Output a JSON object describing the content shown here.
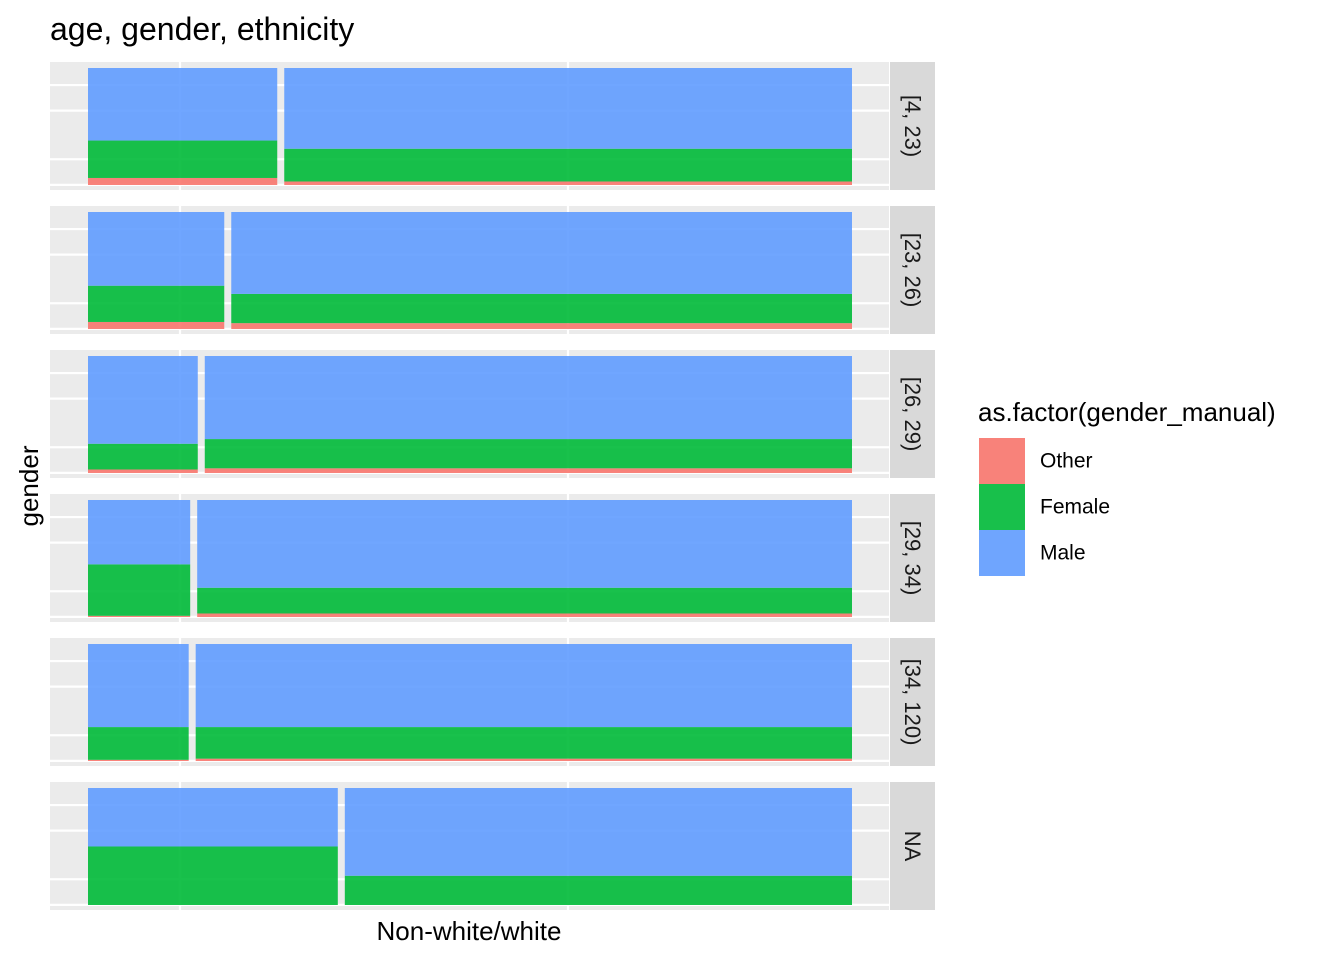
{
  "chart_data": {
    "type": "mosaic",
    "title": "age, gender, ethnicity",
    "xlabel": "Non-white/white",
    "ylabel": "gender",
    "legend": {
      "title": "as.factor(gender_manual)",
      "position": "right",
      "entries": [
        {
          "name": "Other",
          "color": "#F8766D"
        },
        {
          "name": "Female",
          "color": "#00BA38"
        },
        {
          "name": "Male",
          "color": "#619CFF"
        }
      ]
    },
    "stack_order": [
      "Other",
      "Female",
      "Male"
    ],
    "grid": true,
    "panels": [
      {
        "label": "[4, 23)",
        "columns": [
          {
            "width_share": 0.25,
            "Other": 0.06,
            "Female": 0.32,
            "Male": 0.62
          },
          {
            "width_share": 0.75,
            "Other": 0.03,
            "Female": 0.28,
            "Male": 0.69
          }
        ]
      },
      {
        "label": "[23, 26)",
        "columns": [
          {
            "width_share": 0.18,
            "Other": 0.06,
            "Female": 0.31,
            "Male": 0.63
          },
          {
            "width_share": 0.82,
            "Other": 0.05,
            "Female": 0.25,
            "Male": 0.7
          }
        ]
      },
      {
        "label": "[26, 29)",
        "columns": [
          {
            "width_share": 0.145,
            "Other": 0.03,
            "Female": 0.22,
            "Male": 0.75
          },
          {
            "width_share": 0.855,
            "Other": 0.04,
            "Female": 0.25,
            "Male": 0.71
          }
        ]
      },
      {
        "label": "[29, 34)",
        "columns": [
          {
            "width_share": 0.135,
            "Other": 0.01,
            "Female": 0.44,
            "Male": 0.55
          },
          {
            "width_share": 0.865,
            "Other": 0.03,
            "Female": 0.22,
            "Male": 0.75
          }
        ]
      },
      {
        "label": "[34, 120)",
        "columns": [
          {
            "width_share": 0.133,
            "Other": 0.01,
            "Female": 0.28,
            "Male": 0.71
          },
          {
            "width_share": 0.867,
            "Other": 0.02,
            "Female": 0.27,
            "Male": 0.71
          }
        ]
      },
      {
        "label": "NA",
        "columns": [
          {
            "width_share": 0.33,
            "Other": 0.0,
            "Female": 0.5,
            "Male": 0.5
          },
          {
            "width_share": 0.67,
            "Other": 0.0,
            "Female": 0.25,
            "Male": 0.75
          }
        ]
      }
    ]
  }
}
